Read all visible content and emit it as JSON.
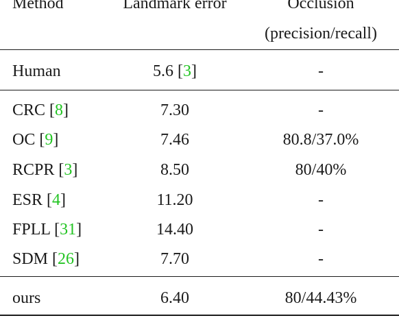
{
  "headers": {
    "method": "Method",
    "landmark": "Landmark error",
    "occlusion_line1": "Occlusion",
    "occlusion_line2": "(precision/recall)"
  },
  "colors": {
    "text": "#1a1a1a",
    "citation": "#22c422",
    "rule": "#1a1a1a"
  },
  "rows": [
    {
      "name": "Human",
      "open": " [",
      "cite": "",
      "close": "",
      "landmark_value": "5.6",
      "landmark_open": " [",
      "landmark_cite": "3",
      "landmark_close": "]",
      "occlusion": "-"
    },
    {
      "name": "CRC",
      "open": " [",
      "cite": "8",
      "close": "]",
      "landmark_value": "7.30",
      "occlusion": "-"
    },
    {
      "name": "OC",
      "open": " [",
      "cite": "9",
      "close": "]",
      "landmark_value": "7.46",
      "occlusion": "80.8/37.0%"
    },
    {
      "name": "RCPR",
      "open": " [",
      "cite": "3",
      "close": "]",
      "landmark_value": "8.50",
      "occlusion": "80/40%"
    },
    {
      "name": "ESR",
      "open": " [",
      "cite": "4",
      "close": "]",
      "landmark_value": "11.20",
      "occlusion": "-"
    },
    {
      "name": "FPLL",
      "open": " [",
      "cite": "31",
      "close": "]",
      "landmark_value": "14.40",
      "occlusion": "-"
    },
    {
      "name": "SDM",
      "open": " [",
      "cite": "26",
      "close": "]",
      "landmark_value": "7.70",
      "occlusion": "-"
    },
    {
      "name": "ours",
      "landmark_value": "6.40",
      "occlusion": "80/44.43%"
    }
  ]
}
